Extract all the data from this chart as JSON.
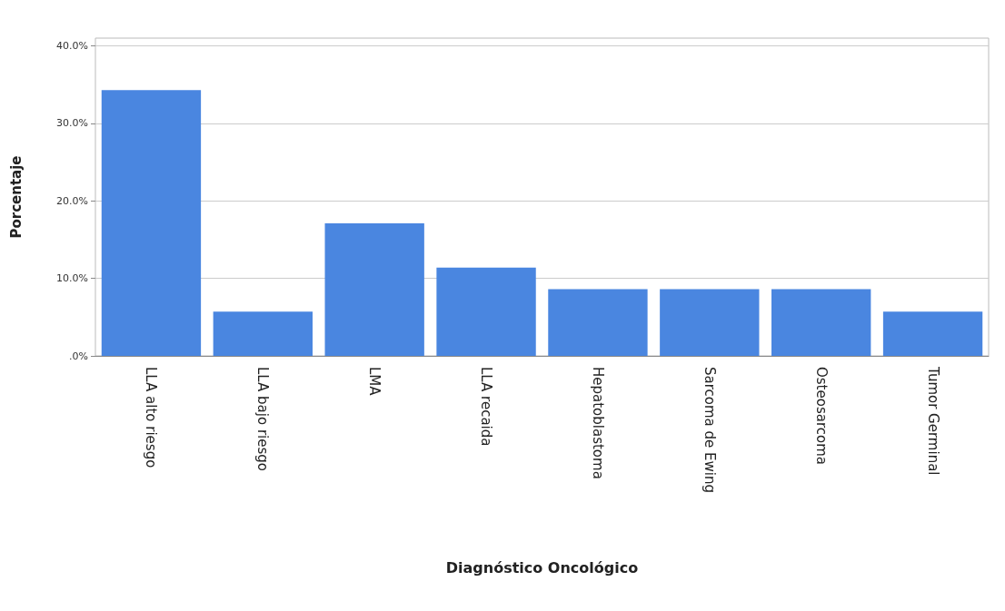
{
  "chart_data": {
    "type": "bar",
    "xlabel": "Diagnóstico Oncológico",
    "ylabel": "Porcentaje",
    "categories": [
      "LLA alto riesgo",
      "LLA bajo riesgo",
      "LMA",
      "LLA recaida",
      "Hepatoblastoma",
      "Sarcoma de Ewing",
      "Osteosarcoma",
      "Tumor Germinal"
    ],
    "values": [
      34.3,
      5.7,
      17.1,
      11.4,
      8.6,
      8.6,
      8.6,
      5.7
    ],
    "color": "#4a86e0",
    "ylim": [
      0,
      41
    ],
    "yticks": [
      {
        "value": 0,
        "label": ".0%"
      },
      {
        "value": 10,
        "label": "10.0%"
      },
      {
        "value": 20,
        "label": "20.0%"
      },
      {
        "value": 30,
        "label": "30.0%"
      },
      {
        "value": 40,
        "label": "40.0%"
      }
    ],
    "grid": "y"
  }
}
